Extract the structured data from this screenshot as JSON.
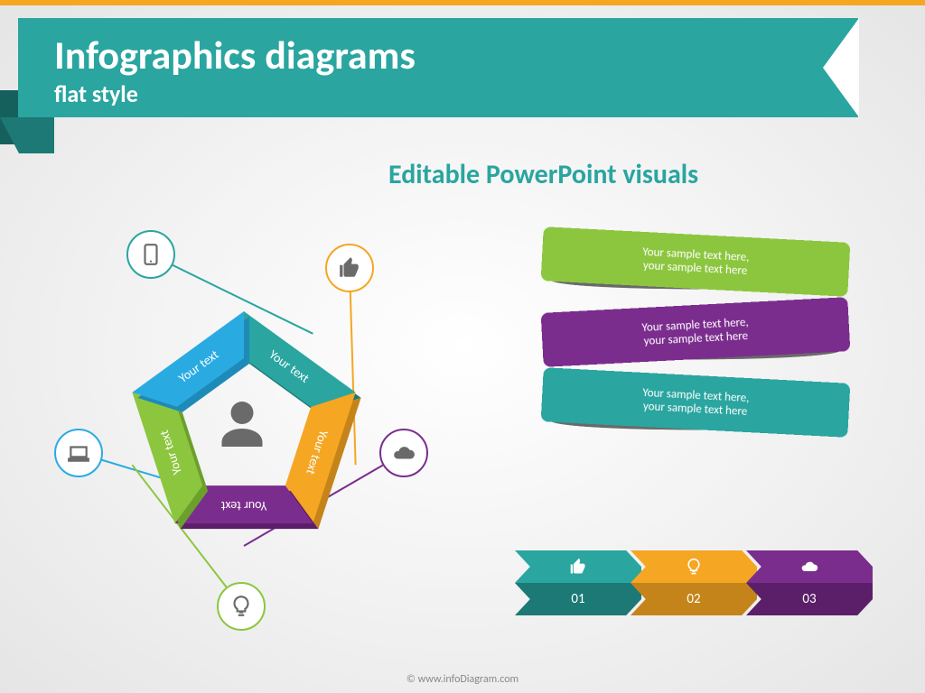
{
  "colors": {
    "orange_top": "#f5a623",
    "banner": "#2aa5a0",
    "banner_fold": "#1c7975",
    "banner_fold2": "#15605d",
    "subtitle": "#2aa5a0",
    "teal": "#2aa5a0",
    "teal_dark": "#1c7975",
    "orange": "#f5a623",
    "orange_dark": "#c4841a",
    "purple": "#7b2d8e",
    "purple_dark": "#5a1f68",
    "green": "#8cc63f",
    "green_dark": "#6ba02c",
    "blue": "#29abe2",
    "blue_dark": "#1e8ab8",
    "grey_icon": "#6a6a6a",
    "grey_band": "#6a6a6a",
    "footer": "#888888"
  },
  "banner": {
    "title": "Infographics diagrams",
    "subtitle": "flat style"
  },
  "subtitle": "Editable PowerPoint visuals",
  "pentagon": {
    "segments": [
      {
        "label": "Your text",
        "color": "teal",
        "icon": "phone"
      },
      {
        "label": "Your text",
        "color": "orange",
        "icon": "thumb"
      },
      {
        "label": "Your text",
        "color": "purple",
        "icon": "cloud"
      },
      {
        "label": "Your text",
        "color": "green",
        "icon": "bulb"
      },
      {
        "label": "Your text",
        "color": "blue",
        "icon": "laptop"
      }
    ],
    "center_icon": "person"
  },
  "spiral": [
    {
      "line1": "Your sample text here,",
      "line2": "your sample text here",
      "color": "green"
    },
    {
      "line1": "Your sample text here,",
      "line2": "your sample text here",
      "color": "purple"
    },
    {
      "line1": "Your sample text here,",
      "line2": "your sample text here",
      "color": "teal"
    }
  ],
  "arrows": [
    {
      "num": "01",
      "color": "teal",
      "icon": "thumb"
    },
    {
      "num": "02",
      "color": "orange",
      "icon": "bulb"
    },
    {
      "num": "03",
      "color": "purple",
      "icon": "cloud"
    }
  ],
  "footer": "© www.infoDiagram.com"
}
